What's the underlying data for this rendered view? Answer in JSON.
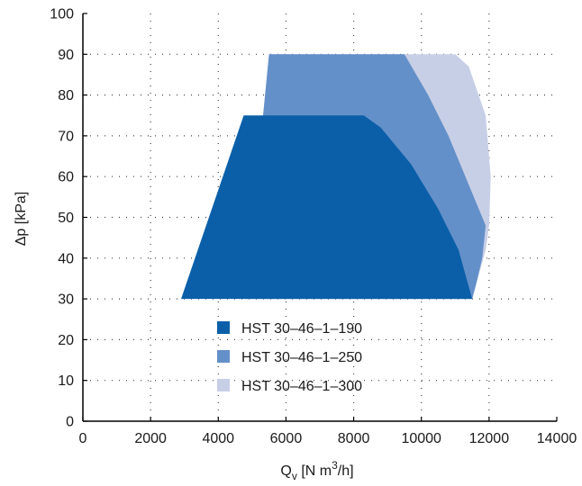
{
  "chart_data": {
    "type": "area",
    "xlabel": "Q",
    "xlabel_sub": "v",
    "xlabel_unit": "[N m",
    "xlabel_sup": "3",
    "xlabel_tail": "/h]",
    "ylabel": "Δp [kPa]",
    "xlim": [
      0,
      14000
    ],
    "ylim": [
      0,
      100
    ],
    "xticks": [
      "0",
      "2000",
      "4000",
      "6000",
      "8000",
      "10000",
      "12000",
      "14000"
    ],
    "yticks": [
      "0",
      "10",
      "20",
      "30",
      "40",
      "50",
      "60",
      "70",
      "80",
      "90",
      "100"
    ],
    "grid": true,
    "legend_position": "bottom-center",
    "series": [
      {
        "name": "HST 30–46–1–300",
        "color": "#c7cfe7",
        "points": [
          [
            4800,
            30
          ],
          [
            5500,
            90
          ],
          [
            11000,
            90
          ],
          [
            11400,
            87
          ],
          [
            11900,
            75
          ],
          [
            12050,
            60
          ],
          [
            12000,
            48
          ],
          [
            11900,
            42
          ],
          [
            11600,
            33
          ],
          [
            11500,
            30
          ]
        ]
      },
      {
        "name": "HST 30–46–1–250",
        "color": "#6490c9",
        "points": [
          [
            4800,
            30
          ],
          [
            5500,
            90
          ],
          [
            9500,
            90
          ],
          [
            10200,
            80
          ],
          [
            10800,
            70
          ],
          [
            11400,
            58
          ],
          [
            11900,
            48
          ],
          [
            11800,
            40
          ],
          [
            11600,
            33
          ],
          [
            11500,
            30
          ]
        ]
      },
      {
        "name": "HST 30–46–1–190",
        "color": "#0a5fa8",
        "points": [
          [
            2900,
            30
          ],
          [
            4750,
            75
          ],
          [
            8300,
            75
          ],
          [
            8800,
            72
          ],
          [
            9700,
            63
          ],
          [
            10500,
            52
          ],
          [
            11100,
            42
          ],
          [
            11500,
            30
          ]
        ]
      }
    ]
  }
}
